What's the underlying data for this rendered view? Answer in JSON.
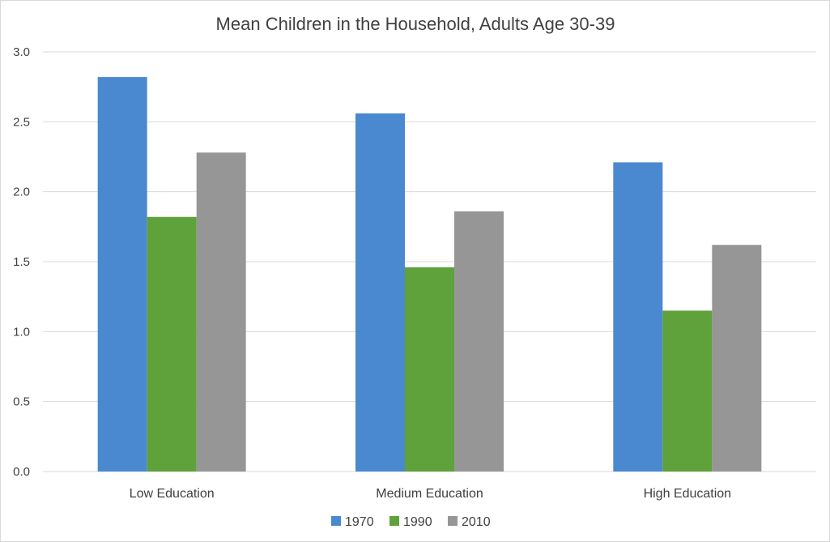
{
  "chart_data": {
    "type": "bar",
    "title": "Mean Children in the Household, Adults Age 30-39",
    "xlabel": "",
    "ylabel": "",
    "ylim": [
      0,
      3.0
    ],
    "yticks": [
      "0.0",
      "0.5",
      "1.0",
      "1.5",
      "2.0",
      "2.5",
      "3.0"
    ],
    "categories": [
      "Low Education",
      "Medium Education",
      "High Education"
    ],
    "series": [
      {
        "name": "1970",
        "color": "#4a89d0",
        "values": [
          2.82,
          2.56,
          2.21
        ]
      },
      {
        "name": "1990",
        "color": "#5fa13a",
        "values": [
          1.82,
          1.46,
          1.15
        ]
      },
      {
        "name": "2010",
        "color": "#969696",
        "values": [
          2.28,
          1.86,
          1.62
        ]
      }
    ],
    "grid": true,
    "legend": "bottom-center"
  }
}
